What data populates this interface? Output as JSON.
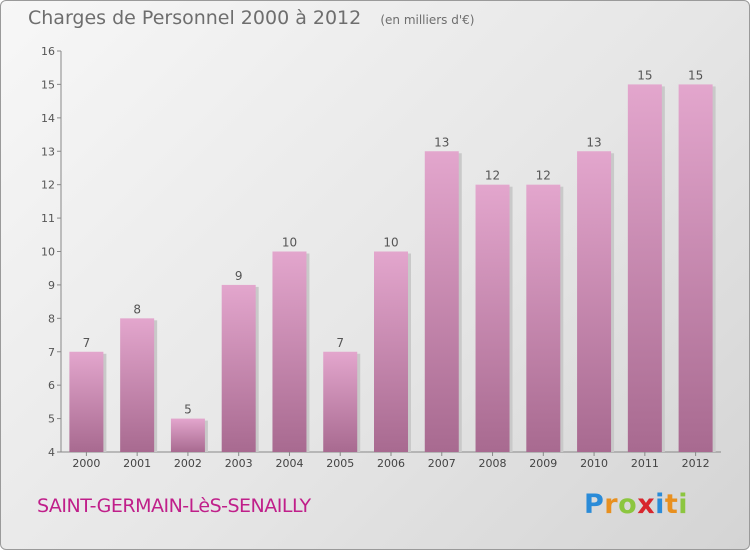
{
  "header": {
    "title": "Charges de Personnel 2000 à 2012",
    "unit_note": "(en milliers d'€)"
  },
  "footer": {
    "commune": "SAINT-GERMAIN-LèS-SENAILLY",
    "logo": {
      "letters": [
        "P",
        "r",
        "o",
        "x",
        "i",
        "t",
        "i"
      ],
      "colors": [
        "#2a8bd8",
        "#e8901f",
        "#8cc63f",
        "#d8262d",
        "#2a8bd8",
        "#e8901f",
        "#8cc63f"
      ]
    }
  },
  "chart_data": {
    "type": "bar",
    "title": "Charges de Personnel 2000 à 2012",
    "subtitle": "(en milliers d'€)",
    "categories": [
      "2000",
      "2001",
      "2002",
      "2003",
      "2004",
      "2005",
      "2006",
      "2007",
      "2008",
      "2009",
      "2010",
      "2011",
      "2012"
    ],
    "values": [
      7,
      8,
      5,
      9,
      10,
      7,
      10,
      13,
      12,
      12,
      13,
      15,
      15
    ],
    "data_labels": [
      "7",
      "8",
      "5",
      "9",
      "10",
      "7",
      "10",
      "13",
      "12",
      "12",
      "13",
      "15",
      "15"
    ],
    "ylim": [
      4,
      16
    ],
    "yticks": [
      4,
      5,
      6,
      7,
      8,
      9,
      10,
      11,
      12,
      13,
      14,
      15,
      16
    ],
    "grid": false,
    "bar_color_top": "#e3a6cd",
    "bar_color_bottom": "#a86a90"
  }
}
